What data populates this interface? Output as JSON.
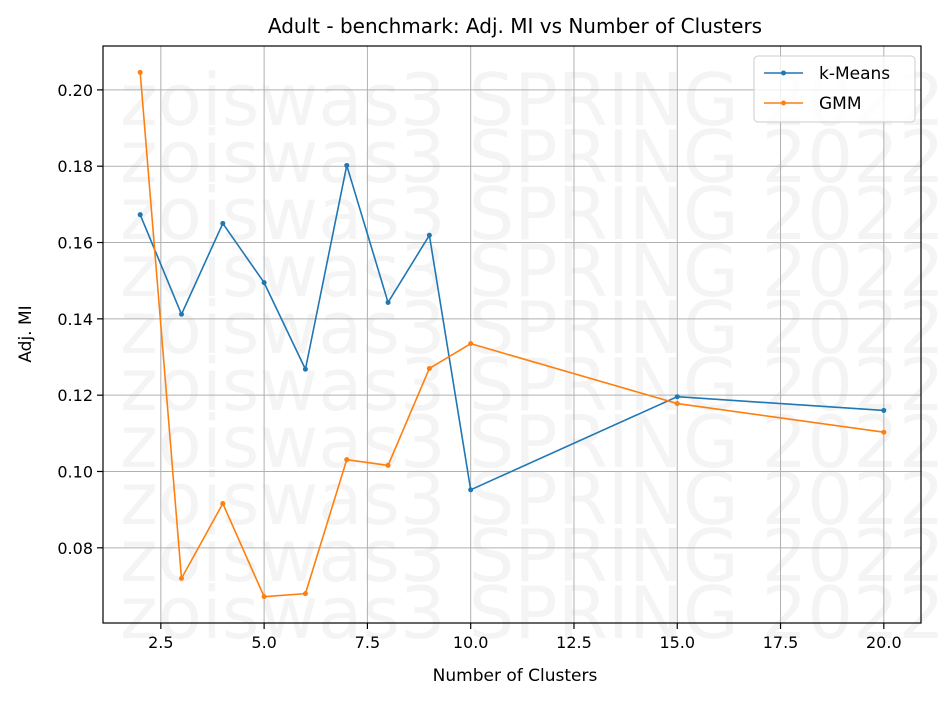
{
  "chart_data": {
    "type": "line",
    "title": "Adult - benchmark: Adj. MI vs Number of Clusters",
    "xlabel": "Number of Clusters",
    "ylabel": "Adj. MI",
    "xlim": [
      1.1,
      20.9
    ],
    "ylim": [
      0.0603,
      0.2115
    ],
    "xticks": [
      2.5,
      5.0,
      7.5,
      10.0,
      12.5,
      15.0,
      17.5,
      20.0
    ],
    "xtick_labels": [
      "2.5",
      "5.0",
      "7.5",
      "10.0",
      "12.5",
      "15.0",
      "17.5",
      "20.0"
    ],
    "yticks": [
      0.08,
      0.1,
      0.12,
      0.14,
      0.16,
      0.18,
      0.2
    ],
    "ytick_labels": [
      "0.08",
      "0.10",
      "0.12",
      "0.14",
      "0.16",
      "0.18",
      "0.20"
    ],
    "grid": true,
    "legend_position": "top-right",
    "series": [
      {
        "name": "k-Means",
        "color": "#1f77b4",
        "x": [
          2,
          3,
          4,
          5,
          6,
          7,
          8,
          9,
          10,
          15,
          20
        ],
        "values": [
          0.1673,
          0.1412,
          0.165,
          0.1495,
          0.1268,
          0.1802,
          0.1443,
          0.1619,
          0.0952,
          0.1196,
          0.116
        ]
      },
      {
        "name": "GMM",
        "color": "#ff7f0e",
        "x": [
          2,
          3,
          4,
          5,
          6,
          7,
          8,
          9,
          10,
          15,
          20
        ],
        "values": [
          0.2046,
          0.072,
          0.0916,
          0.0672,
          0.068,
          0.1031,
          0.1016,
          0.127,
          0.1335,
          0.1178,
          0.1103
        ]
      }
    ],
    "watermark": "zoiswas3 SPRING 2022"
  }
}
